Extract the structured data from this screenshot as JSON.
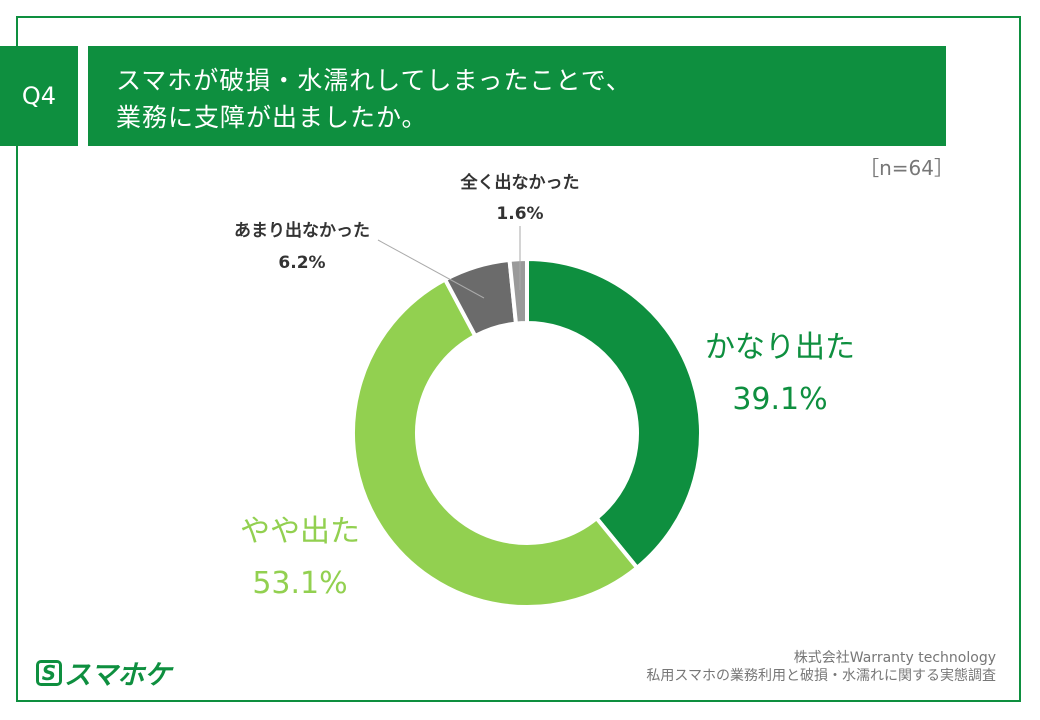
{
  "question": {
    "number": "Q4",
    "title_line1": "スマホが破損・水濡れしてしまったことで、",
    "title_line2": "業務に支障が出ましたか。"
  },
  "sample": "［n=64］",
  "chart_data": {
    "type": "pie",
    "donut": true,
    "title": "",
    "slices": [
      {
        "label": "かなり出た",
        "value": 39.1,
        "value_label": "39.1%",
        "color": "#0e8f3f"
      },
      {
        "label": "やや出た",
        "value": 53.1,
        "value_label": "53.1%",
        "color": "#92d050"
      },
      {
        "label": "あまり出なかった",
        "value": 6.2,
        "value_label": "6.2%",
        "color": "#6b6b6b"
      },
      {
        "label": "全く出なかった",
        "value": 1.6,
        "value_label": "1.6%",
        "color": "#9a9a9a"
      }
    ]
  },
  "footer": {
    "company": "株式会社Warranty technology",
    "survey": "私用スマホの業務利用と破損・水濡れに関する実態調査"
  },
  "logo": {
    "mark": "S",
    "text": "スマホケ",
    "color": "#0e8f3f"
  },
  "colors": {
    "brand": "#0e8f3f",
    "light_green": "#92d050"
  }
}
